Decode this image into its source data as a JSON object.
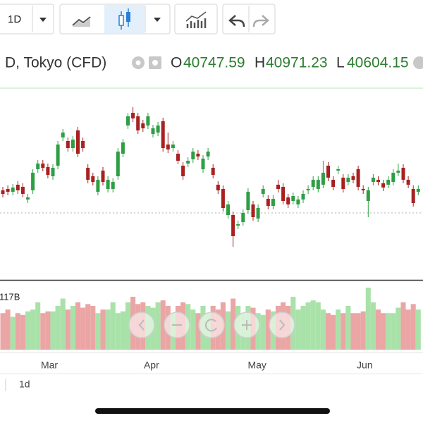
{
  "toolbar": {
    "interval": "1D"
  },
  "legend": {
    "symbol": "D, Tokyo (CFD)",
    "open_label": "O",
    "open": 40747.59,
    "high_label": "H",
    "high": 40971.23,
    "low_label": "L",
    "low": 40604.15
  },
  "chart_data": {
    "type": "candlestick",
    "open": [
      40900,
      40940,
      40860,
      41060,
      41000,
      40640,
      40900,
      41500,
      41660,
      41560,
      41300,
      41600,
      42400,
      42300,
      42100,
      42600,
      42300,
      41540,
      41300,
      40860,
      41460,
      40940,
      40940,
      41300,
      41940,
      42740,
      43100,
      43000,
      42800,
      42740,
      42500,
      42540,
      42860,
      42200,
      42100,
      41940,
      41600,
      41660,
      41780,
      41940,
      41500,
      41860,
      41540,
      41060,
      40940,
      40200,
      40200,
      39900,
      40000,
      40340,
      40500,
      40100,
      40800,
      40660,
      40460,
      41060,
      41000,
      40700,
      40600,
      40500,
      40640,
      40900,
      41000,
      40940,
      41060,
      41600,
      41200,
      41460,
      41260,
      41140,
      41300,
      41500,
      40940,
      40600,
      41140,
      41200,
      41100,
      41060,
      41140,
      41400,
      41540,
      41200,
      40940,
      40860
    ],
    "high": [
      41000,
      41040,
      41080,
      41160,
      41100,
      40800,
      41500,
      41760,
      41760,
      41660,
      41640,
      42300,
      42640,
      42400,
      42440,
      42700,
      42400,
      41640,
      41400,
      41300,
      41560,
      41300,
      41240,
      42100,
      42360,
      43100,
      43260,
      43100,
      42900,
      43100,
      42760,
      42840,
      42960,
      42540,
      42300,
      42040,
      41700,
      41840,
      42100,
      42040,
      41900,
      42100,
      41640,
      41160,
      41040,
      40600,
      40300,
      40040,
      40360,
      40960,
      40600,
      40500,
      41040,
      40760,
      40760,
      41200,
      41100,
      40800,
      40840,
      40740,
      40900,
      41040,
      41300,
      41300,
      41740,
      41700,
      41300,
      41600,
      41360,
      41360,
      41400,
      41600,
      41040,
      41000,
      41360,
      41300,
      41200,
      41300,
      41500,
      41660,
      41640,
      41300,
      41040,
      41040
    ],
    "low": [
      40700,
      40760,
      40760,
      40800,
      40700,
      40540,
      40800,
      41400,
      41440,
      41240,
      41200,
      41500,
      42300,
      42000,
      42000,
      41840,
      42000,
      41100,
      41040,
      40760,
      41040,
      40840,
      40840,
      41200,
      41840,
      42640,
      42840,
      42500,
      42560,
      42640,
      42400,
      42440,
      42000,
      41960,
      42000,
      41640,
      41200,
      41560,
      41680,
      41760,
      41400,
      41760,
      41240,
      40800,
      40300,
      40100,
      39300,
      39800,
      39900,
      40240,
      40040,
      40000,
      40700,
      40360,
      40360,
      40840,
      40500,
      40400,
      40500,
      40400,
      40540,
      40800,
      40900,
      40840,
      40960,
      41160,
      40900,
      41360,
      40840,
      41040,
      41100,
      40900,
      40800,
      40140,
      41040,
      41040,
      40880,
      40960,
      41040,
      41300,
      41100,
      40960,
      40440,
      40760
    ],
    "close": [
      40800,
      40860,
      40980,
      40900,
      40800,
      40700,
      41400,
      41660,
      41540,
      41340,
      41540,
      42200,
      42540,
      42100,
      42340,
      41940,
      42100,
      41200,
      41140,
      41200,
      41140,
      41200,
      41140,
      42000,
      42260,
      43000,
      42940,
      42600,
      42660,
      43000,
      42660,
      42740,
      42100,
      42060,
      42200,
      41740,
      41300,
      41740,
      42000,
      41860,
      41800,
      42000,
      41340,
      40900,
      40400,
      40500,
      39600,
      39940,
      40260,
      40860,
      40140,
      40400,
      40940,
      40460,
      40660,
      40940,
      40600,
      40500,
      40740,
      40640,
      40800,
      40940,
      41200,
      41200,
      41400,
      41260,
      41000,
      41500,
      40940,
      41260,
      41200,
      41000,
      40900,
      40900,
      41260,
      41140,
      40980,
      41200,
      41400,
      41460,
      41200,
      41060,
      40540,
      40940
    ],
    "ylim": [
      38400,
      43800
    ],
    "price_line": 40260,
    "up_color": "#2e9e44",
    "down_color": "#a8201f",
    "volume": {
      "label": "117B",
      "values": [
        1.0,
        1.1,
        0.9,
        1.0,
        0.95,
        1.05,
        1.1,
        1.3,
        1.0,
        1.05,
        1.05,
        1.2,
        1.4,
        1.1,
        1.2,
        1.3,
        1.15,
        1.25,
        1.2,
        1.0,
        1.1,
        1.1,
        1.3,
        1.0,
        1.05,
        1.3,
        1.45,
        1.25,
        1.3,
        1.2,
        1.15,
        1.3,
        1.35,
        1.2,
        1.0,
        1.2,
        1.3,
        1.25,
        1.1,
        1.0,
        1.2,
        1.0,
        1.2,
        1.1,
        1.3,
        1.05,
        1.4,
        1.2,
        1.0,
        1.2,
        1.15,
        1.0,
        0.95,
        1.1,
        1.05,
        1.2,
        1.3,
        1.2,
        1.45,
        1.1,
        1.2,
        1.3,
        1.35,
        1.3,
        1.1,
        1.0,
        0.95,
        1.1,
        1.0,
        1.2,
        1.0,
        1.0,
        1.05,
        1.7,
        1.3,
        1.1,
        1.0,
        1.0,
        1.0,
        1.15,
        1.3,
        1.1,
        1.25,
        1.1
      ],
      "ylim": [
        0,
        1.7
      ],
      "up_color": "#a9e2a9",
      "down_color": "#eba5a5"
    },
    "x_labels": [
      "Mar",
      "Apr",
      "May",
      "Jun"
    ]
  },
  "footer": {
    "interval": "1d"
  }
}
